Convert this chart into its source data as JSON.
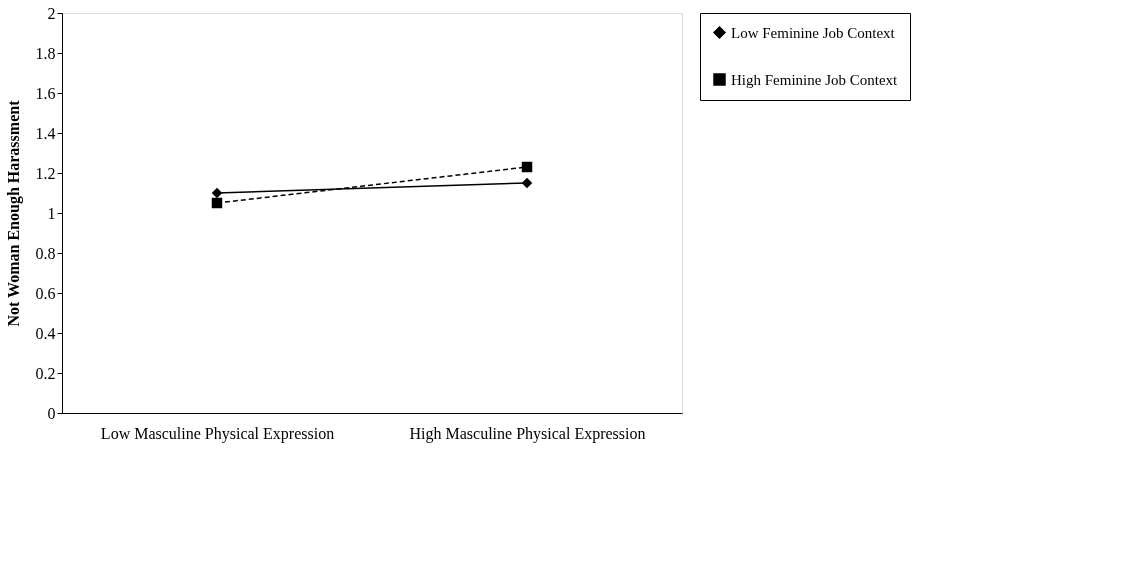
{
  "chart_data": {
    "type": "line",
    "ylabel": "Not Woman Enough Harassment",
    "categories": [
      "Low Masculine Physical Expression",
      "High Masculine Physical Expression"
    ],
    "series": [
      {
        "name": "Low Feminine Job Context",
        "color": "#000000",
        "values": [
          1.1,
          1.15
        ],
        "marker": "diamond",
        "line_style": "solid"
      },
      {
        "name": "High Feminine Job Context",
        "color": "#000000",
        "values": [
          1.05,
          1.23
        ],
        "marker": "square",
        "line_style": "dashed"
      }
    ],
    "ylim": [
      0,
      2
    ],
    "yticks": [
      0,
      0.2,
      0.4,
      0.6,
      0.8,
      1,
      1.2,
      1.4,
      1.6,
      1.8,
      2
    ],
    "grid": false,
    "legend": "right"
  }
}
